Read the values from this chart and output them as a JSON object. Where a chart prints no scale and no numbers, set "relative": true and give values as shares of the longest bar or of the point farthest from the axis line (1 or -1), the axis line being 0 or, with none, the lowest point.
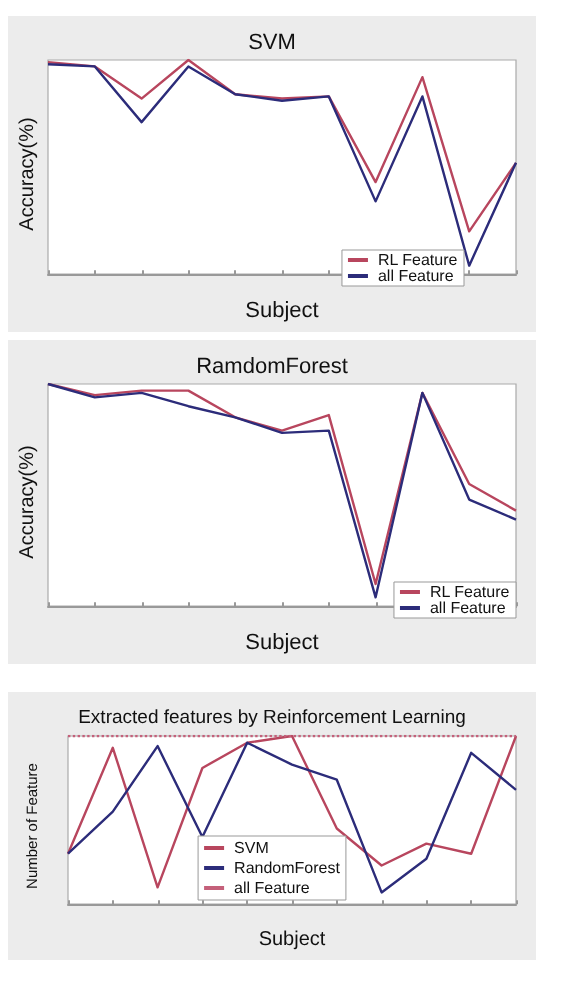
{
  "chart_data": [
    {
      "type": "line",
      "title": "SVM",
      "xlabel": "Subject",
      "ylabel": "Accuracy(%)",
      "relative": true,
      "grid": false,
      "legend": "bottom right",
      "categories": [
        null,
        null,
        null,
        null,
        null,
        null,
        null,
        null,
        null,
        null,
        null
      ],
      "series": [
        {
          "name": "RL Feature",
          "color": "#b8465e",
          "values": [
            0.99,
            0.97,
            0.82,
            1.0,
            0.84,
            0.82,
            0.83,
            0.43,
            0.92,
            0.2,
            0.52
          ]
        },
        {
          "name": "all Feature",
          "color": "#2c2c7a",
          "values": [
            0.98,
            0.97,
            0.71,
            0.97,
            0.84,
            0.81,
            0.83,
            0.34,
            0.83,
            0.04,
            0.52
          ]
        }
      ]
    },
    {
      "type": "line",
      "title": "RamdomForest",
      "xlabel": "Subject",
      "ylabel": "Accuracy(%)",
      "relative": true,
      "grid": false,
      "legend": "bottom right",
      "categories": [
        null,
        null,
        null,
        null,
        null,
        null,
        null,
        null,
        null,
        null,
        null
      ],
      "series": [
        {
          "name": "RL Feature",
          "color": "#b8465e",
          "values": [
            1.0,
            0.95,
            0.97,
            0.97,
            0.85,
            0.79,
            0.86,
            0.1,
            0.96,
            0.55,
            0.43
          ]
        },
        {
          "name": "all Feature",
          "color": "#2c2c7a",
          "values": [
            1.0,
            0.94,
            0.96,
            0.9,
            0.85,
            0.78,
            0.79,
            0.04,
            0.96,
            0.48,
            0.39
          ]
        }
      ]
    },
    {
      "type": "line",
      "title": "Extracted features by Reinforcement Learning",
      "xlabel": "Subject",
      "ylabel": "Number of Feature",
      "relative": true,
      "grid": false,
      "legend": "bottom",
      "categories": [
        null,
        null,
        null,
        null,
        null,
        null,
        null,
        null,
        null,
        null,
        null
      ],
      "series": [
        {
          "name": "SVM",
          "color": "#b8465e",
          "values": [
            0.3,
            0.93,
            0.1,
            0.81,
            0.96,
            1.0,
            0.45,
            0.23,
            0.36,
            0.3,
            1.0
          ]
        },
        {
          "name": "RandomForest",
          "color": "#2c2c7a",
          "values": [
            0.3,
            0.55,
            0.94,
            0.4,
            0.96,
            0.83,
            0.74,
            0.07,
            0.27,
            0.9,
            0.68
          ]
        },
        {
          "name": "all Feature",
          "color": "#c4607a",
          "line_style": "dotted",
          "values": [
            1.0,
            1.0,
            1.0,
            1.0,
            1.0,
            1.0,
            1.0,
            1.0,
            1.0,
            1.0,
            1.0
          ]
        }
      ]
    }
  ]
}
